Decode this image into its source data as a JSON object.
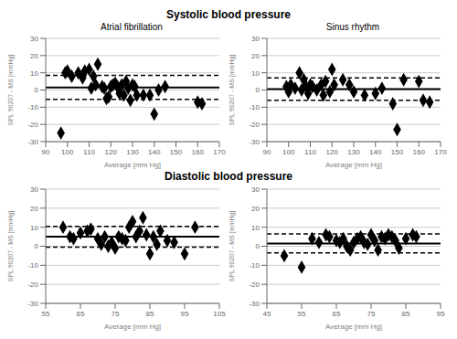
{
  "chart_data": [
    {
      "type": "scatter",
      "annotations": [
        "Systolic blood pressure"
      ],
      "title": "Atrial fibrillation",
      "x_label": "Average [mm Hg]",
      "y_label": "SPL 90207 - MS [mmHg]",
      "xlim": [
        90,
        170
      ],
      "ylim": [
        -30,
        30
      ],
      "xticks": [
        90,
        100,
        110,
        120,
        130,
        140,
        150,
        160,
        170
      ],
      "yticks": [
        -30,
        -20,
        -10,
        0,
        10,
        20,
        30
      ],
      "grid": true,
      "series": [
        {
          "type": "scatter",
          "color": "#000000",
          "marker": "diamond",
          "x": [
            97,
            99,
            100,
            102,
            105,
            107,
            108,
            110,
            111,
            112,
            113,
            114,
            116,
            117,
            118,
            119,
            120,
            121,
            122,
            123,
            124,
            125,
            126,
            127,
            128,
            129,
            130,
            131,
            132,
            135,
            138,
            140,
            142,
            145,
            160,
            162
          ],
          "values": [
            -25,
            10,
            11,
            8,
            10,
            7,
            11,
            12,
            1,
            8,
            3,
            15,
            2,
            1,
            -5,
            -4,
            2,
            3,
            4,
            2,
            -2,
            3,
            -3,
            5,
            1,
            -6,
            3,
            2,
            -3,
            -3,
            -3,
            -14,
            0,
            2,
            -7,
            -8
          ]
        },
        {
          "type": "hline",
          "color": "#000000",
          "line_style": "solid",
          "values": [
            1.5
          ]
        },
        {
          "type": "hline",
          "color": "#000000",
          "line_style": "dashed",
          "values": [
            8.5
          ]
        },
        {
          "type": "hline",
          "color": "#000000",
          "line_style": "dashed",
          "values": [
            -5.5
          ]
        }
      ]
    },
    {
      "type": "scatter",
      "title": "Sinus rhythm",
      "x_label": "Average [mm Hg]",
      "y_label": "SPL 90207 - MS [mmHg]",
      "xlim": [
        90,
        170
      ],
      "ylim": [
        -30,
        30
      ],
      "xticks": [
        90,
        100,
        110,
        120,
        130,
        140,
        150,
        160,
        170
      ],
      "yticks": [
        -30,
        -20,
        -10,
        0,
        10,
        20,
        30
      ],
      "grid": true,
      "series": [
        {
          "type": "scatter",
          "color": "#000000",
          "marker": "diamond",
          "x": [
            99,
            100,
            101,
            103,
            105,
            106,
            107,
            108,
            109,
            110,
            111,
            113,
            115,
            116,
            117,
            119,
            120,
            121,
            125,
            128,
            130,
            135,
            140,
            143,
            148,
            150,
            153,
            160,
            162,
            165
          ],
          "values": [
            2,
            -1,
            3,
            1,
            10,
            0,
            6,
            2,
            -2,
            3,
            2,
            0,
            3,
            -3,
            5,
            -1,
            12,
            3,
            6,
            3,
            -1,
            -3,
            -2,
            1,
            -8,
            -23,
            6,
            5,
            -6,
            -7
          ]
        },
        {
          "type": "hline",
          "color": "#000000",
          "line_style": "solid",
          "values": [
            0.5
          ]
        },
        {
          "type": "hline",
          "color": "#000000",
          "line_style": "dashed",
          "values": [
            7.0
          ]
        },
        {
          "type": "hline",
          "color": "#000000",
          "line_style": "dashed",
          "values": [
            -6.0
          ]
        }
      ]
    },
    {
      "type": "scatter",
      "annotations": [
        "Diastolic blood pressure"
      ],
      "x_label": "Average [mm Hg]",
      "y_label": "SPL 90207 - MS [mmHg]",
      "xlim": [
        55,
        105
      ],
      "ylim": [
        -30,
        30
      ],
      "xticks": [
        55,
        65,
        75,
        85,
        95,
        105
      ],
      "yticks": [
        -30,
        -20,
        -10,
        0,
        10,
        20,
        30
      ],
      "grid": true,
      "series": [
        {
          "type": "scatter",
          "color": "#000000",
          "marker": "diamond",
          "x": [
            60,
            62,
            63,
            65,
            67,
            68,
            70,
            71,
            72,
            73,
            74,
            75,
            76,
            77,
            78,
            79,
            80,
            81,
            82,
            83,
            84,
            85,
            86,
            87,
            88,
            90,
            92,
            95,
            98
          ],
          "values": [
            10,
            5,
            4,
            7,
            8,
            9,
            4,
            1,
            5,
            0,
            2,
            -1,
            5,
            4,
            3,
            10,
            13,
            5,
            8,
            15,
            6,
            -4,
            5,
            1,
            8,
            3,
            2,
            -4,
            10
          ]
        },
        {
          "type": "hline",
          "color": "#000000",
          "line_style": "solid",
          "values": [
            5.0
          ]
        },
        {
          "type": "hline",
          "color": "#000000",
          "line_style": "dashed",
          "values": [
            10.5
          ]
        },
        {
          "type": "hline",
          "color": "#000000",
          "line_style": "dashed",
          "values": [
            -0.5
          ]
        }
      ]
    },
    {
      "type": "scatter",
      "x_label": "Average [mm Hg]",
      "y_label": "SPL 90207 - MS [mmHg]",
      "xlim": [
        45,
        95
      ],
      "ylim": [
        -30,
        30
      ],
      "xticks": [
        45,
        55,
        65,
        75,
        85,
        95
      ],
      "yticks": [
        -30,
        -20,
        -10,
        0,
        10,
        20,
        30
      ],
      "grid": true,
      "series": [
        {
          "type": "scatter",
          "color": "#000000",
          "marker": "diamond",
          "x": [
            50,
            55,
            58,
            60,
            62,
            63,
            65,
            66,
            67,
            68,
            69,
            70,
            71,
            72,
            73,
            74,
            75,
            76,
            77,
            78,
            79,
            80,
            81,
            82,
            83,
            85,
            87,
            88
          ],
          "values": [
            -5,
            -11,
            4,
            2,
            6,
            5,
            3,
            2,
            4,
            0,
            -2,
            2,
            4,
            5,
            2,
            1,
            6,
            3,
            -2,
            5,
            4,
            6,
            5,
            3,
            -1,
            4,
            6,
            5
          ]
        },
        {
          "type": "hline",
          "color": "#000000",
          "line_style": "solid",
          "values": [
            1.5
          ]
        },
        {
          "type": "hline",
          "color": "#000000",
          "line_style": "dashed",
          "values": [
            6.5
          ]
        },
        {
          "type": "hline",
          "color": "#000000",
          "line_style": "dashed",
          "values": [
            -3.5
          ]
        }
      ]
    }
  ]
}
